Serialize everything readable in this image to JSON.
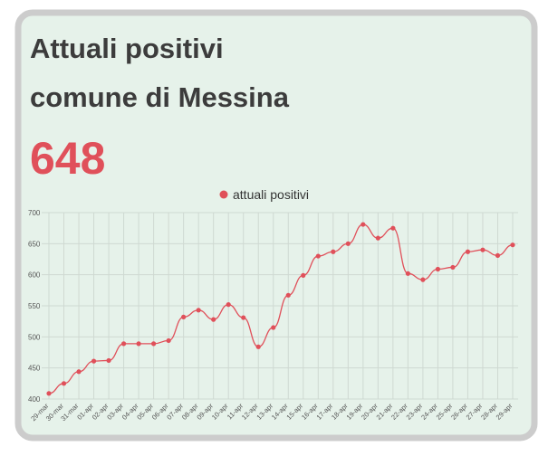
{
  "header": {
    "title_line1": "Attuali positivi",
    "title_line2": "comune di Messina",
    "value": 648
  },
  "chart_data": {
    "type": "line",
    "title": null,
    "categories": [
      "29-mar",
      "30-mar",
      "31-mar",
      "01-apr",
      "02-apr",
      "03-apr",
      "04-apr",
      "05-apr",
      "06-apr",
      "07-apr",
      "08-apr",
      "09-apr",
      "10-apr",
      "11-apr",
      "12-apr",
      "13-apr",
      "14-apr",
      "15-apr",
      "16-apr",
      "17-apr",
      "18-apr",
      "19-apr",
      "20-apr",
      "21-apr",
      "22-apr",
      "23-apr",
      "24-apr",
      "25-apr",
      "26-apr",
      "27-apr",
      "28-apr",
      "29-apr"
    ],
    "series": [
      {
        "name": "attuali positivi",
        "color": "#e0505a",
        "values": [
          409,
          425,
          444,
          461,
          462,
          489,
          489,
          489,
          494,
          532,
          543,
          528,
          552,
          531,
          484,
          515,
          567,
          599,
          630,
          637,
          650,
          681,
          659,
          675,
          602,
          592,
          609,
          612,
          637,
          640,
          631,
          648
        ]
      }
    ],
    "ylim": [
      400,
      700
    ],
    "yticks": [
      400,
      450,
      500,
      550,
      600,
      650,
      700
    ],
    "grid": true
  }
}
